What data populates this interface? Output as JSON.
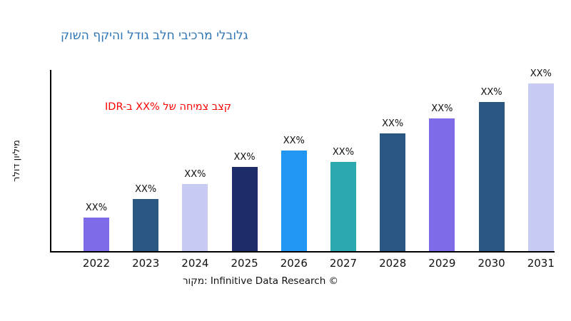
{
  "title": {
    "text": "קושה ףקיהו לדוג בלח יביכרמ ילבולג",
    "color": "#2E75B6"
  },
  "annotation": {
    "text": "IDR-ב XX% לש החימצ בצק",
    "color": "#FF0000"
  },
  "footer": "רוקמ: Infinitive Data Research ©",
  "chart_data": {
    "type": "bar",
    "title": "קושה ףקיהו לדוג בלח יביכרמ ילבולג",
    "categories": [
      "2022",
      "2023",
      "2024",
      "2025",
      "2026",
      "2027",
      "2028",
      "2029",
      "2030",
      "2031"
    ],
    "values": [
      20,
      31,
      40,
      50,
      60,
      53,
      70,
      79,
      89,
      100
    ],
    "bar_labels": [
      "XX%",
      "XX%",
      "XX%",
      "XX%",
      "XX%",
      "XX%",
      "XX%",
      "XX%",
      "XX%",
      "XX%"
    ],
    "colors": [
      "#7D6BE8",
      "#2A5783",
      "#C9CCF2",
      "#1E2D69",
      "#2196F3",
      "#2BA8B0",
      "#2A5783",
      "#7D6BE8",
      "#2A5783",
      "#C9CCF2"
    ],
    "xlabel": "",
    "ylabel": "רלוד ןוילימ",
    "ylim": [
      0,
      108
    ],
    "grid": false,
    "legend": "none",
    "annotation": "IDR-ב XX% לש החימצ בצק",
    "source": "רוקמ: Infinitive Data Research ©"
  }
}
